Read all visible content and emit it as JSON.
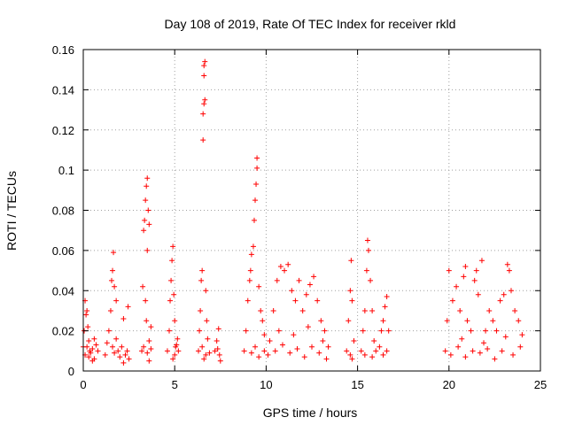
{
  "chart_data": {
    "type": "scatter",
    "title": "Day 108 of 2019, Rate Of TEC Index for receiver rkld",
    "xlabel": "GPS time / hours",
    "ylabel": "ROTI / TECUs",
    "xlim": [
      0,
      25
    ],
    "ylim": [
      0,
      0.16
    ],
    "grid": true,
    "marker": "+",
    "color": "#ff0000",
    "xticks": [
      0,
      5,
      10,
      15,
      20,
      25
    ],
    "xtick_labels": [
      "0",
      "5",
      "10",
      "15",
      "20",
      "25"
    ],
    "yticks": [
      0,
      0.02,
      0.04,
      0.06,
      0.08,
      0.1,
      0.12,
      0.14,
      0.16
    ],
    "ytick_labels": [
      "0",
      "0.02",
      "0.04",
      "0.06",
      "0.08",
      "0.1",
      "0.12",
      "0.14",
      "0.16"
    ],
    "series": [
      {
        "name": "ROTI",
        "points": [
          [
            0.0,
            0.012
          ],
          [
            0.05,
            0.02
          ],
          [
            0.1,
            0.035
          ],
          [
            0.15,
            0.028
          ],
          [
            0.2,
            0.03
          ],
          [
            0.25,
            0.022
          ],
          [
            0.3,
            0.015
          ],
          [
            0.35,
            0.01
          ],
          [
            0.1,
            0.008
          ],
          [
            0.2,
            0.012
          ],
          [
            0.3,
            0.007
          ],
          [
            0.4,
            0.009
          ],
          [
            0.5,
            0.011
          ],
          [
            0.6,
            0.006
          ],
          [
            0.7,
            0.013
          ],
          [
            0.8,
            0.01
          ],
          [
            0.6,
            0.016
          ],
          [
            0.5,
            0.005
          ],
          [
            1.2,
            0.008
          ],
          [
            1.3,
            0.014
          ],
          [
            1.4,
            0.02
          ],
          [
            1.5,
            0.03
          ],
          [
            1.55,
            0.045
          ],
          [
            1.6,
            0.05
          ],
          [
            1.65,
            0.059
          ],
          [
            1.7,
            0.042
          ],
          [
            1.8,
            0.035
          ],
          [
            1.6,
            0.012
          ],
          [
            1.7,
            0.009
          ],
          [
            1.8,
            0.016
          ],
          [
            1.9,
            0.01
          ],
          [
            2.0,
            0.007
          ],
          [
            2.1,
            0.012
          ],
          [
            2.2,
            0.026
          ],
          [
            2.3,
            0.008
          ],
          [
            2.4,
            0.01
          ],
          [
            2.45,
            0.032
          ],
          [
            2.5,
            0.006
          ],
          [
            2.2,
            0.004
          ],
          [
            3.2,
            0.01
          ],
          [
            3.25,
            0.042
          ],
          [
            3.3,
            0.07
          ],
          [
            3.35,
            0.075
          ],
          [
            3.4,
            0.085
          ],
          [
            3.45,
            0.092
          ],
          [
            3.5,
            0.096
          ],
          [
            3.55,
            0.08
          ],
          [
            3.6,
            0.073
          ],
          [
            3.5,
            0.06
          ],
          [
            3.4,
            0.035
          ],
          [
            3.45,
            0.025
          ],
          [
            3.6,
            0.015
          ],
          [
            3.7,
            0.022
          ],
          [
            3.3,
            0.012
          ],
          [
            3.5,
            0.009
          ],
          [
            3.6,
            0.005
          ],
          [
            3.7,
            0.011
          ],
          [
            4.6,
            0.01
          ],
          [
            4.7,
            0.02
          ],
          [
            4.75,
            0.035
          ],
          [
            4.8,
            0.045
          ],
          [
            4.85,
            0.055
          ],
          [
            4.9,
            0.062
          ],
          [
            4.95,
            0.038
          ],
          [
            5.0,
            0.025
          ],
          [
            5.1,
            0.013
          ],
          [
            5.2,
            0.01
          ],
          [
            4.9,
            0.006
          ],
          [
            5.0,
            0.008
          ],
          [
            5.05,
            0.012
          ],
          [
            5.15,
            0.016
          ],
          [
            6.3,
            0.01
          ],
          [
            6.35,
            0.02
          ],
          [
            6.4,
            0.03
          ],
          [
            6.45,
            0.045
          ],
          [
            6.5,
            0.05
          ],
          [
            6.55,
            0.115
          ],
          [
            6.55,
            0.128
          ],
          [
            6.6,
            0.133
          ],
          [
            6.6,
            0.147
          ],
          [
            6.6,
            0.152
          ],
          [
            6.65,
            0.154
          ],
          [
            6.65,
            0.135
          ],
          [
            6.7,
            0.04
          ],
          [
            6.75,
            0.025
          ],
          [
            6.8,
            0.016
          ],
          [
            6.5,
            0.012
          ],
          [
            6.7,
            0.008
          ],
          [
            6.9,
            0.009
          ],
          [
            6.6,
            0.006
          ],
          [
            7.2,
            0.01
          ],
          [
            7.3,
            0.015
          ],
          [
            7.4,
            0.021
          ],
          [
            7.45,
            0.008
          ],
          [
            7.5,
            0.005
          ],
          [
            7.35,
            0.011
          ],
          [
            8.8,
            0.01
          ],
          [
            8.9,
            0.02
          ],
          [
            9.0,
            0.035
          ],
          [
            9.1,
            0.045
          ],
          [
            9.15,
            0.05
          ],
          [
            9.2,
            0.058
          ],
          [
            9.3,
            0.062
          ],
          [
            9.35,
            0.075
          ],
          [
            9.4,
            0.085
          ],
          [
            9.45,
            0.093
          ],
          [
            9.5,
            0.101
          ],
          [
            9.5,
            0.106
          ],
          [
            9.6,
            0.042
          ],
          [
            9.7,
            0.03
          ],
          [
            9.8,
            0.025
          ],
          [
            9.9,
            0.018
          ],
          [
            9.2,
            0.009
          ],
          [
            9.4,
            0.012
          ],
          [
            9.6,
            0.007
          ],
          [
            9.9,
            0.01
          ],
          [
            10.2,
            0.015
          ],
          [
            10.4,
            0.03
          ],
          [
            10.6,
            0.045
          ],
          [
            10.8,
            0.052
          ],
          [
            11.0,
            0.05
          ],
          [
            11.2,
            0.053
          ],
          [
            11.4,
            0.04
          ],
          [
            11.6,
            0.035
          ],
          [
            11.8,
            0.045
          ],
          [
            12.0,
            0.03
          ],
          [
            12.2,
            0.038
          ],
          [
            12.4,
            0.043
          ],
          [
            12.6,
            0.047
          ],
          [
            12.8,
            0.035
          ],
          [
            13.0,
            0.025
          ],
          [
            13.2,
            0.02
          ],
          [
            13.4,
            0.012
          ],
          [
            10.1,
            0.008
          ],
          [
            10.5,
            0.01
          ],
          [
            10.9,
            0.013
          ],
          [
            11.3,
            0.009
          ],
          [
            11.7,
            0.011
          ],
          [
            12.1,
            0.007
          ],
          [
            12.5,
            0.012
          ],
          [
            12.9,
            0.009
          ],
          [
            13.3,
            0.006
          ],
          [
            10.7,
            0.02
          ],
          [
            11.5,
            0.018
          ],
          [
            12.3,
            0.022
          ],
          [
            13.1,
            0.015
          ],
          [
            14.4,
            0.01
          ],
          [
            14.5,
            0.025
          ],
          [
            14.6,
            0.04
          ],
          [
            14.65,
            0.055
          ],
          [
            14.7,
            0.035
          ],
          [
            14.8,
            0.015
          ],
          [
            14.6,
            0.008
          ],
          [
            14.7,
            0.006
          ],
          [
            15.2,
            0.01
          ],
          [
            15.3,
            0.02
          ],
          [
            15.4,
            0.03
          ],
          [
            15.5,
            0.05
          ],
          [
            15.55,
            0.065
          ],
          [
            15.6,
            0.06
          ],
          [
            15.7,
            0.045
          ],
          [
            15.8,
            0.03
          ],
          [
            15.9,
            0.015
          ],
          [
            15.4,
            0.008
          ],
          [
            15.8,
            0.007
          ],
          [
            16.0,
            0.01
          ],
          [
            16.2,
            0.012
          ],
          [
            16.3,
            0.02
          ],
          [
            16.4,
            0.025
          ],
          [
            16.5,
            0.032
          ],
          [
            16.6,
            0.037
          ],
          [
            16.7,
            0.02
          ],
          [
            16.4,
            0.008
          ],
          [
            16.6,
            0.01
          ],
          [
            19.8,
            0.01
          ],
          [
            19.9,
            0.025
          ],
          [
            20.0,
            0.05
          ],
          [
            20.2,
            0.035
          ],
          [
            20.4,
            0.042
          ],
          [
            20.6,
            0.03
          ],
          [
            20.8,
            0.047
          ],
          [
            20.9,
            0.052
          ],
          [
            21.0,
            0.025
          ],
          [
            21.2,
            0.02
          ],
          [
            21.4,
            0.045
          ],
          [
            21.5,
            0.05
          ],
          [
            21.6,
            0.038
          ],
          [
            21.8,
            0.055
          ],
          [
            22.0,
            0.02
          ],
          [
            22.2,
            0.03
          ],
          [
            22.4,
            0.025
          ],
          [
            22.6,
            0.02
          ],
          [
            22.8,
            0.035
          ],
          [
            23.0,
            0.038
          ],
          [
            23.2,
            0.053
          ],
          [
            23.3,
            0.05
          ],
          [
            23.4,
            0.04
          ],
          [
            23.6,
            0.03
          ],
          [
            23.8,
            0.025
          ],
          [
            24.0,
            0.018
          ],
          [
            20.1,
            0.008
          ],
          [
            20.5,
            0.012
          ],
          [
            20.9,
            0.007
          ],
          [
            21.3,
            0.01
          ],
          [
            21.7,
            0.009
          ],
          [
            22.1,
            0.011
          ],
          [
            22.5,
            0.006
          ],
          [
            22.9,
            0.01
          ],
          [
            23.5,
            0.008
          ],
          [
            23.9,
            0.012
          ],
          [
            20.7,
            0.016
          ],
          [
            21.9,
            0.014
          ],
          [
            23.1,
            0.017
          ]
        ]
      }
    ]
  }
}
